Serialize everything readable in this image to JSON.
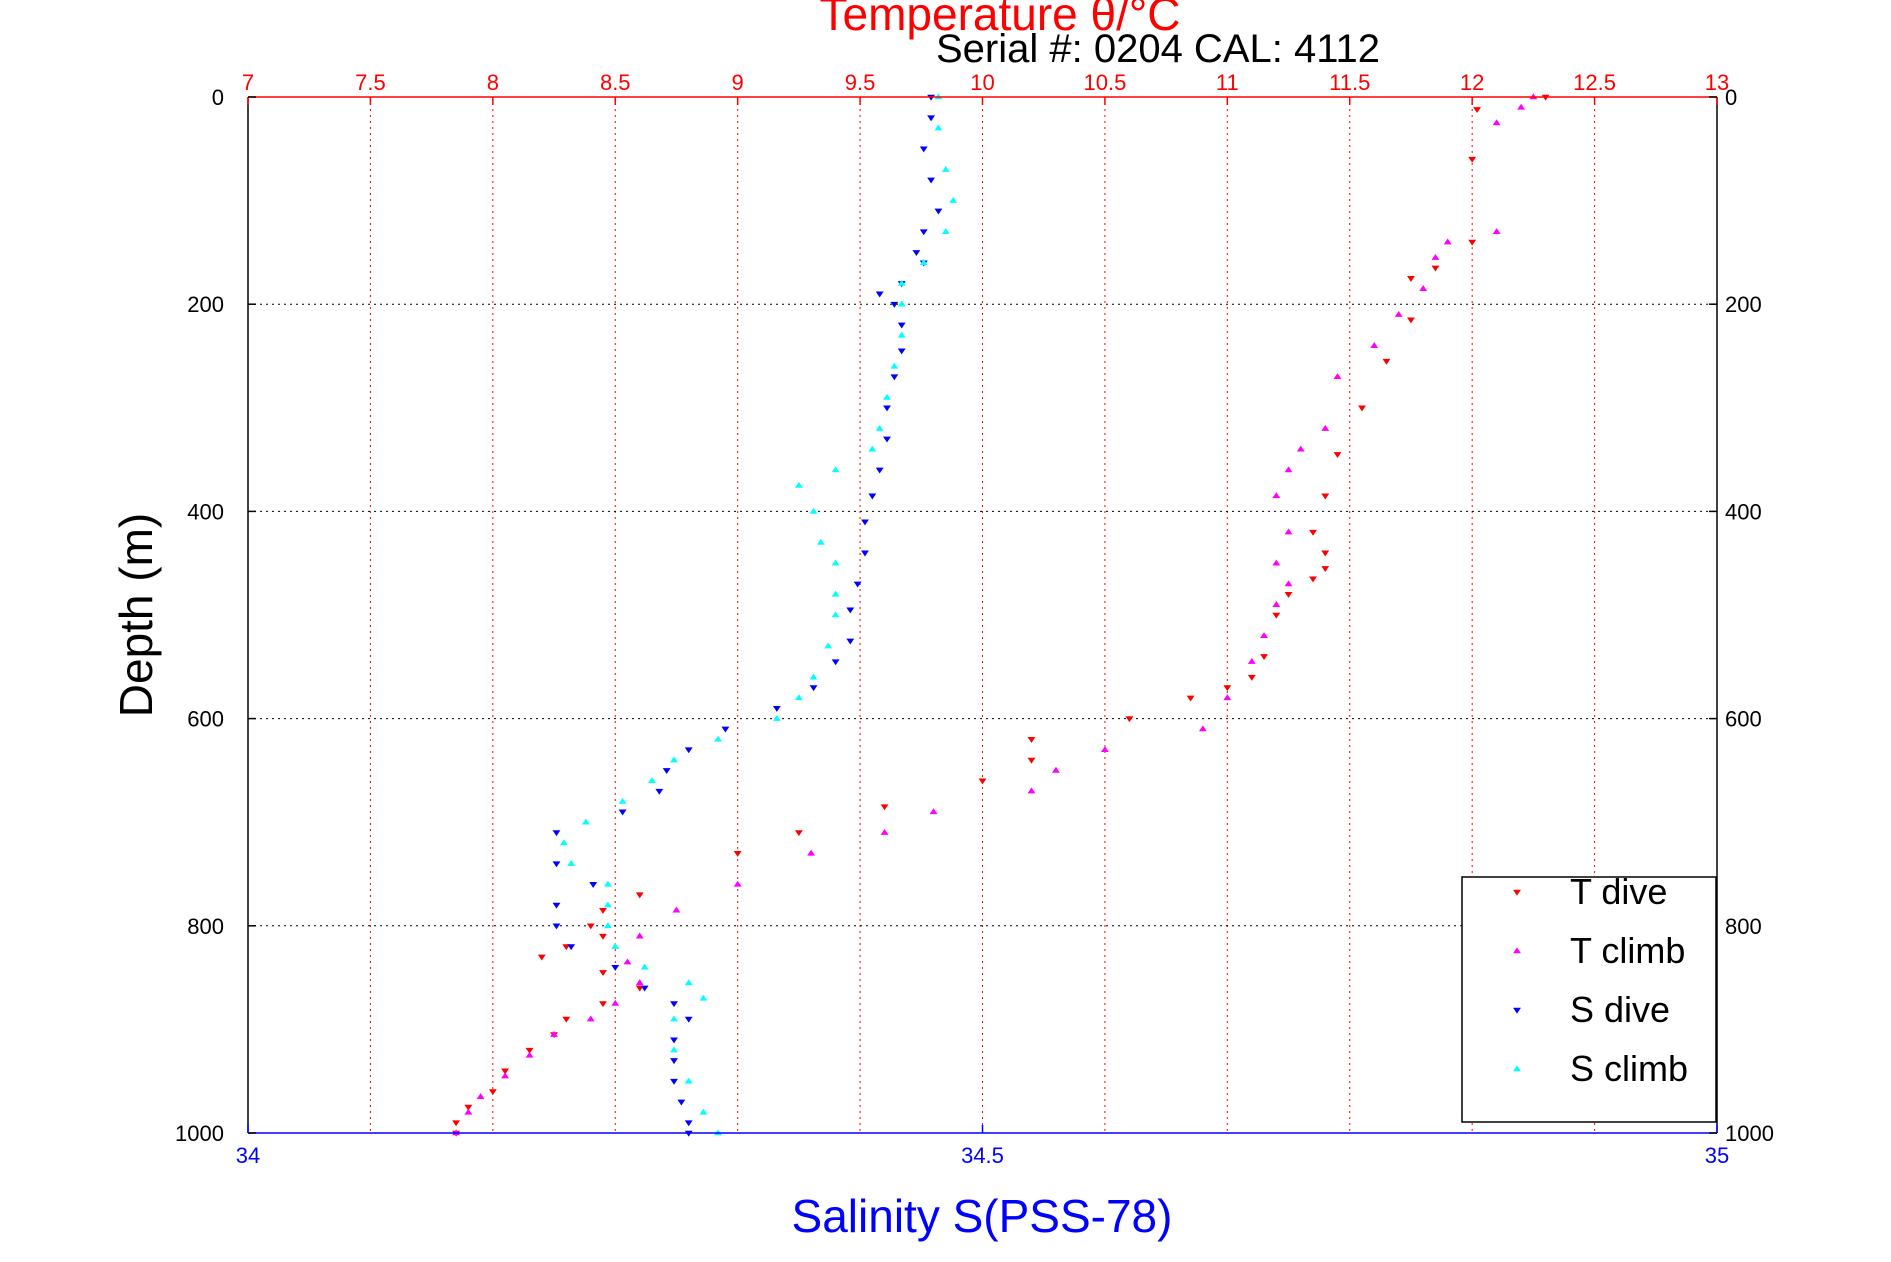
{
  "chart_data": {
    "type": "scatter",
    "title": "Temperature θ/°C",
    "subtitle": "Serial #: 0204  CAL: 4112",
    "ylabel": "Depth (m)",
    "xlabel": "Salinity S(PSS-78)",
    "ylim": [
      0,
      1000
    ],
    "y_reversed": true,
    "temperature_axis": {
      "position": "top",
      "range": [
        7,
        13
      ],
      "ticks": [
        "7",
        "7.5",
        "8",
        "8.5",
        "9",
        "9.5",
        "10",
        "10.5",
        "11",
        "11.5",
        "12",
        "12.5",
        "13"
      ],
      "color": "#ff0000"
    },
    "salinity_axis": {
      "position": "bottom",
      "range": [
        34,
        35
      ],
      "ticks": [
        "34",
        "34.5",
        "35"
      ],
      "color": "#0000ff"
    },
    "depth_ticks": [
      "0",
      "200",
      "400",
      "600",
      "800",
      "1000"
    ],
    "grid": true,
    "legend_placement": "bottom-right",
    "series": [
      {
        "name": "T dive",
        "axis": "temperature",
        "marker": "triangle-down",
        "color": "#ff0000",
        "points": [
          [
            12.3,
            0
          ],
          [
            12.02,
            12
          ],
          [
            12.0,
            60
          ],
          [
            12.0,
            140
          ],
          [
            11.85,
            165
          ],
          [
            11.75,
            175
          ],
          [
            11.75,
            215
          ],
          [
            11.65,
            255
          ],
          [
            11.55,
            300
          ],
          [
            11.45,
            345
          ],
          [
            11.4,
            385
          ],
          [
            11.35,
            420
          ],
          [
            11.4,
            440
          ],
          [
            11.4,
            455
          ],
          [
            11.35,
            465
          ],
          [
            11.25,
            480
          ],
          [
            11.2,
            500
          ],
          [
            11.15,
            540
          ],
          [
            11.1,
            560
          ],
          [
            11.0,
            570
          ],
          [
            10.85,
            580
          ],
          [
            10.6,
            600
          ],
          [
            10.2,
            620
          ],
          [
            10.2,
            640
          ],
          [
            10.0,
            660
          ],
          [
            9.6,
            685
          ],
          [
            9.25,
            710
          ],
          [
            9.0,
            730
          ],
          [
            8.6,
            770
          ],
          [
            8.45,
            785
          ],
          [
            8.4,
            800
          ],
          [
            8.45,
            810
          ],
          [
            8.3,
            820
          ],
          [
            8.2,
            830
          ],
          [
            8.45,
            845
          ],
          [
            8.6,
            860
          ],
          [
            8.45,
            875
          ],
          [
            8.3,
            890
          ],
          [
            8.25,
            905
          ],
          [
            8.15,
            920
          ],
          [
            8.05,
            940
          ],
          [
            8.0,
            960
          ],
          [
            7.9,
            975
          ],
          [
            7.85,
            990
          ],
          [
            7.85,
            1000
          ]
        ]
      },
      {
        "name": "T climb",
        "axis": "temperature",
        "marker": "triangle-up",
        "color": "#ff00ff",
        "points": [
          [
            12.25,
            0
          ],
          [
            12.2,
            10
          ],
          [
            12.1,
            25
          ],
          [
            12.1,
            130
          ],
          [
            11.9,
            140
          ],
          [
            11.85,
            155
          ],
          [
            11.8,
            185
          ],
          [
            11.7,
            210
          ],
          [
            11.6,
            240
          ],
          [
            11.45,
            270
          ],
          [
            11.4,
            320
          ],
          [
            11.3,
            340
          ],
          [
            11.25,
            360
          ],
          [
            11.2,
            385
          ],
          [
            11.25,
            420
          ],
          [
            11.2,
            450
          ],
          [
            11.25,
            470
          ],
          [
            11.2,
            490
          ],
          [
            11.15,
            520
          ],
          [
            11.1,
            545
          ],
          [
            11.0,
            580
          ],
          [
            10.9,
            610
          ],
          [
            10.5,
            630
          ],
          [
            10.3,
            650
          ],
          [
            10.2,
            670
          ],
          [
            9.8,
            690
          ],
          [
            9.6,
            710
          ],
          [
            9.3,
            730
          ],
          [
            9.0,
            760
          ],
          [
            8.75,
            785
          ],
          [
            8.6,
            810
          ],
          [
            8.55,
            835
          ],
          [
            8.6,
            855
          ],
          [
            8.5,
            875
          ],
          [
            8.4,
            890
          ],
          [
            8.25,
            905
          ],
          [
            8.15,
            925
          ],
          [
            8.05,
            945
          ],
          [
            7.95,
            965
          ],
          [
            7.9,
            980
          ],
          [
            7.85,
            1000
          ]
        ]
      },
      {
        "name": "S dive",
        "axis": "salinity",
        "marker": "triangle-down",
        "color": "#0000ff",
        "points": [
          [
            34.465,
            0
          ],
          [
            34.465,
            20
          ],
          [
            34.46,
            50
          ],
          [
            34.465,
            80
          ],
          [
            34.47,
            110
          ],
          [
            34.46,
            130
          ],
          [
            34.455,
            150
          ],
          [
            34.46,
            160
          ],
          [
            34.445,
            180
          ],
          [
            34.43,
            190
          ],
          [
            34.44,
            200
          ],
          [
            34.445,
            220
          ],
          [
            34.445,
            245
          ],
          [
            34.44,
            270
          ],
          [
            34.435,
            300
          ],
          [
            34.435,
            330
          ],
          [
            34.43,
            360
          ],
          [
            34.425,
            385
          ],
          [
            34.42,
            410
          ],
          [
            34.42,
            440
          ],
          [
            34.415,
            470
          ],
          [
            34.41,
            495
          ],
          [
            34.41,
            525
          ],
          [
            34.4,
            545
          ],
          [
            34.385,
            570
          ],
          [
            34.36,
            590
          ],
          [
            34.325,
            610
          ],
          [
            34.3,
            630
          ],
          [
            34.285,
            650
          ],
          [
            34.28,
            670
          ],
          [
            34.255,
            690
          ],
          [
            34.21,
            710
          ],
          [
            34.21,
            740
          ],
          [
            34.235,
            760
          ],
          [
            34.21,
            780
          ],
          [
            34.21,
            800
          ],
          [
            34.22,
            820
          ],
          [
            34.25,
            840
          ],
          [
            34.27,
            860
          ],
          [
            34.29,
            875
          ],
          [
            34.3,
            890
          ],
          [
            34.29,
            910
          ],
          [
            34.29,
            930
          ],
          [
            34.29,
            950
          ],
          [
            34.295,
            970
          ],
          [
            34.3,
            990
          ],
          [
            34.3,
            1000
          ]
        ]
      },
      {
        "name": "S climb",
        "axis": "salinity",
        "marker": "triangle-up",
        "color": "#00ffff",
        "points": [
          [
            34.47,
            0
          ],
          [
            34.47,
            30
          ],
          [
            34.475,
            70
          ],
          [
            34.48,
            100
          ],
          [
            34.475,
            130
          ],
          [
            34.46,
            160
          ],
          [
            34.445,
            180
          ],
          [
            34.445,
            200
          ],
          [
            34.445,
            230
          ],
          [
            34.44,
            260
          ],
          [
            34.435,
            290
          ],
          [
            34.43,
            320
          ],
          [
            34.425,
            340
          ],
          [
            34.4,
            360
          ],
          [
            34.375,
            375
          ],
          [
            34.385,
            400
          ],
          [
            34.39,
            430
          ],
          [
            34.4,
            450
          ],
          [
            34.4,
            480
          ],
          [
            34.4,
            500
          ],
          [
            34.395,
            530
          ],
          [
            34.385,
            560
          ],
          [
            34.375,
            580
          ],
          [
            34.36,
            600
          ],
          [
            34.32,
            620
          ],
          [
            34.29,
            640
          ],
          [
            34.275,
            660
          ],
          [
            34.255,
            680
          ],
          [
            34.23,
            700
          ],
          [
            34.215,
            720
          ],
          [
            34.22,
            740
          ],
          [
            34.245,
            760
          ],
          [
            34.245,
            780
          ],
          [
            34.245,
            800
          ],
          [
            34.25,
            820
          ],
          [
            34.27,
            840
          ],
          [
            34.3,
            855
          ],
          [
            34.31,
            870
          ],
          [
            34.29,
            890
          ],
          [
            34.29,
            920
          ],
          [
            34.3,
            950
          ],
          [
            34.31,
            980
          ],
          [
            34.32,
            1000
          ]
        ]
      }
    ]
  }
}
